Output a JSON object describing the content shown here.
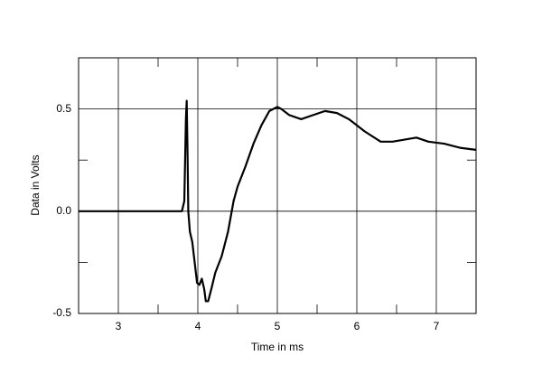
{
  "chart_data": {
    "type": "line",
    "x_label": "Time in ms",
    "y_label": "Data in Volts",
    "x": [
      2.5,
      3.8,
      3.83,
      3.85,
      3.86,
      3.87,
      3.88,
      3.9,
      3.93,
      3.96,
      3.99,
      4.02,
      4.05,
      4.08,
      4.1,
      4.13,
      4.17,
      4.22,
      4.3,
      4.38,
      4.45,
      4.5,
      4.6,
      4.7,
      4.8,
      4.9,
      5.0,
      5.05,
      5.15,
      5.3,
      5.45,
      5.6,
      5.75,
      5.9,
      6.1,
      6.3,
      6.45,
      6.6,
      6.75,
      6.9,
      7.1,
      7.3,
      7.5
    ],
    "values": [
      0,
      0,
      0.05,
      0.45,
      0.54,
      0.3,
      0.0,
      -0.1,
      -0.15,
      -0.25,
      -0.35,
      -0.36,
      -0.33,
      -0.38,
      -0.44,
      -0.44,
      -0.38,
      -0.3,
      -0.22,
      -0.1,
      0.05,
      0.12,
      0.22,
      0.33,
      0.42,
      0.49,
      0.51,
      0.5,
      0.47,
      0.45,
      0.47,
      0.49,
      0.48,
      0.45,
      0.39,
      0.34,
      0.34,
      0.35,
      0.36,
      0.34,
      0.33,
      0.31,
      0.3
    ],
    "color": "#000000",
    "xlim": [
      2.5,
      7.5
    ],
    "xticks": [
      3,
      4,
      5,
      6,
      7
    ],
    "xminorticks": [
      3.5,
      4.5,
      5.5,
      6.5
    ],
    "ylim": [
      -0.5,
      0.75
    ],
    "yticks": [
      -0.5,
      {
        "value": 0,
        "label": "0.0"
      },
      0.5
    ],
    "yminorticks": [
      -0.25,
      0.25
    ],
    "grid": true
  }
}
